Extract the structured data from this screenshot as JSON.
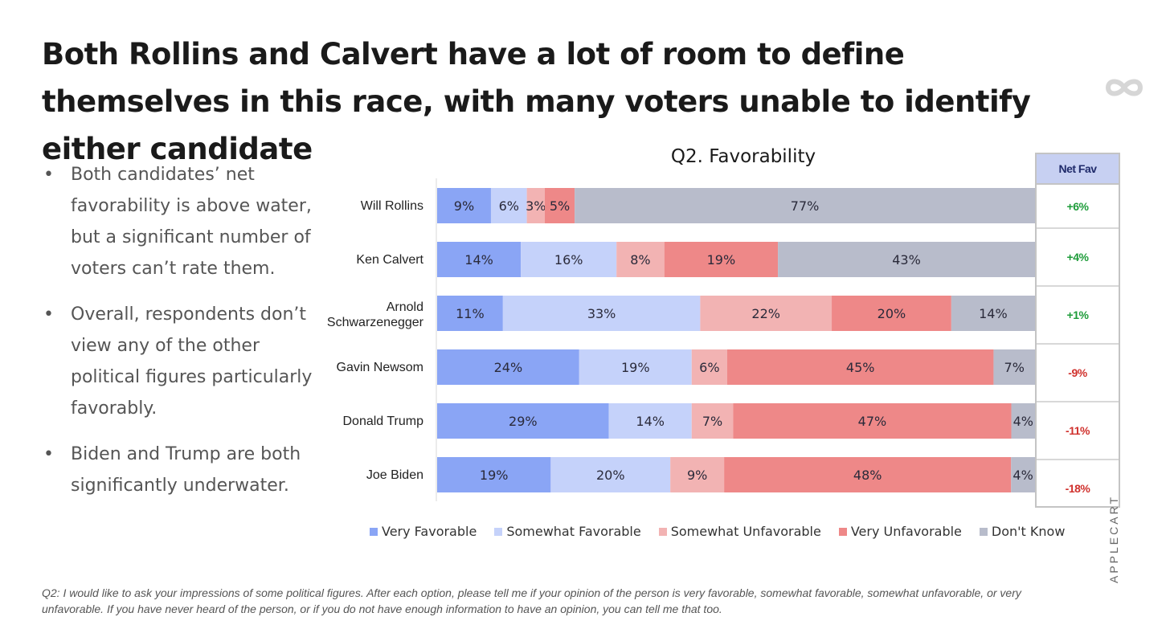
{
  "title": "Both Rollins and Calvert have a lot of room to define themselves in this race, with many voters unable to identify either candidate",
  "logo_icon": "infinity-icon",
  "bullets": [
    "Both candidates’ net favorability is above water, but a significant number of voters can’t rate them.",
    "Overall, respondents don’t view any of the other political figures particularly favorably.",
    "Biden and Trump are both significantly underwater."
  ],
  "bullet_symbol": "•",
  "chart_data": {
    "type": "bar",
    "orientation": "horizontal",
    "stacked": true,
    "percent_stacked": true,
    "title": "Q2. Favorability",
    "categories": [
      "Will Rollins",
      "Ken Calvert",
      "Arnold Schwarzenegger",
      "Gavin Newsom",
      "Donald Trump",
      "Joe Biden"
    ],
    "series": [
      {
        "name": "Very Favorable",
        "color": "#8aa5f5",
        "values": [
          9,
          14,
          11,
          24,
          29,
          19
        ]
      },
      {
        "name": "Somewhat Favorable",
        "color": "#c5d2fa",
        "values": [
          6,
          16,
          33,
          19,
          14,
          20
        ]
      },
      {
        "name": "Somewhat Unfavorable",
        "color": "#f2b3b3",
        "values": [
          3,
          8,
          22,
          6,
          7,
          9
        ]
      },
      {
        "name": "Very Unfavorable",
        "color": "#ee8888",
        "values": [
          5,
          19,
          20,
          45,
          47,
          48
        ]
      },
      {
        "name": "Don't Know",
        "color": "#b8bccb",
        "values": [
          77,
          43,
          14,
          7,
          4,
          4
        ]
      }
    ],
    "legend_position": "bottom",
    "grid": false
  },
  "net_fav": {
    "header": "Net Fav",
    "values": [
      "+6%",
      "+4%",
      "+1%",
      "-9%",
      "-11%",
      "-18%"
    ],
    "positive_color": "#1e9c3a",
    "negative_color": "#d0312d"
  },
  "brand": "APPLECART",
  "footnote": "Q2: I would like to ask your impressions of some political figures. After each option, please tell me if your opinion of the person is very favorable, somewhat favorable, somewhat unfavorable, or very unfavorable. If you have never heard of the person, or if you do not have enough information to have an opinion, you can tell me that too."
}
